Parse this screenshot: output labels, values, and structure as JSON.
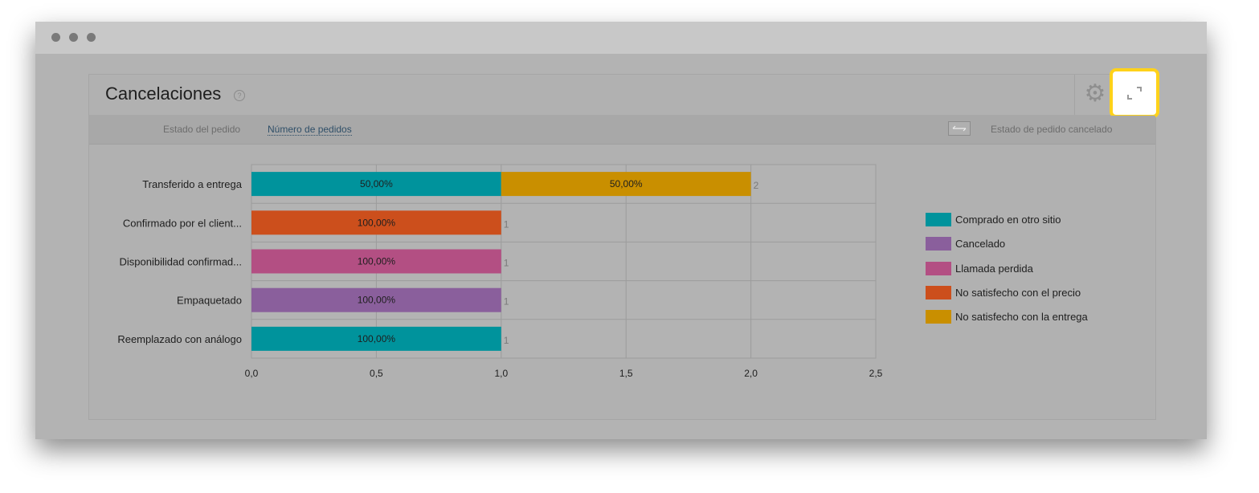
{
  "widget": {
    "title": "Cancelaciones",
    "help_icon": "?",
    "subbar": {
      "left_label": "Estado del pedido",
      "active_link": "Número de pedidos",
      "right_label": "Estado de pedido cancelado"
    }
  },
  "icons": {
    "gear": "gear-icon",
    "expand": "expand-icon",
    "swap": "swap-arrows-icon"
  },
  "chart_data": {
    "type": "bar",
    "orientation": "horizontal",
    "stacked": true,
    "xlim": [
      0,
      2.5
    ],
    "xticks": [
      "0,0",
      "0,5",
      "1,0",
      "1,5",
      "2,0",
      "2,5"
    ],
    "categories": [
      "Transferido a entrega",
      "Confirmado por el client...",
      "Disponibilidad confirmad...",
      "Empaquetado",
      "Reemplazado con análogo"
    ],
    "totals": [
      "2",
      "1",
      "1",
      "1",
      "1"
    ],
    "series": [
      {
        "name": "Comprado en otro sitio",
        "color": "#00939c",
        "values": [
          1,
          0,
          0,
          0,
          1
        ],
        "labels": [
          "50,00%",
          "",
          "",
          "",
          "100,00%"
        ]
      },
      {
        "name": "Cancelado",
        "color": "#8a5f9c",
        "values": [
          0,
          0,
          0,
          1,
          0
        ],
        "labels": [
          "",
          "",
          "",
          "100,00%",
          ""
        ]
      },
      {
        "name": "Llamada perdida",
        "color": "#b34f83",
        "values": [
          0,
          0,
          1,
          0,
          0
        ],
        "labels": [
          "",
          "",
          "100,00%",
          "",
          ""
        ]
      },
      {
        "name": "No satisfecho con el precio",
        "color": "#cc4f1c",
        "values": [
          0,
          1,
          0,
          0,
          0
        ],
        "labels": [
          "",
          "100,00%",
          "",
          "",
          ""
        ]
      },
      {
        "name": "No satisfecho con la entrega",
        "color": "#c98f00",
        "values": [
          1,
          0,
          0,
          0,
          0
        ],
        "labels": [
          "50,00%",
          "",
          "",
          "",
          ""
        ]
      }
    ],
    "legend_position": "right",
    "grid": true
  }
}
